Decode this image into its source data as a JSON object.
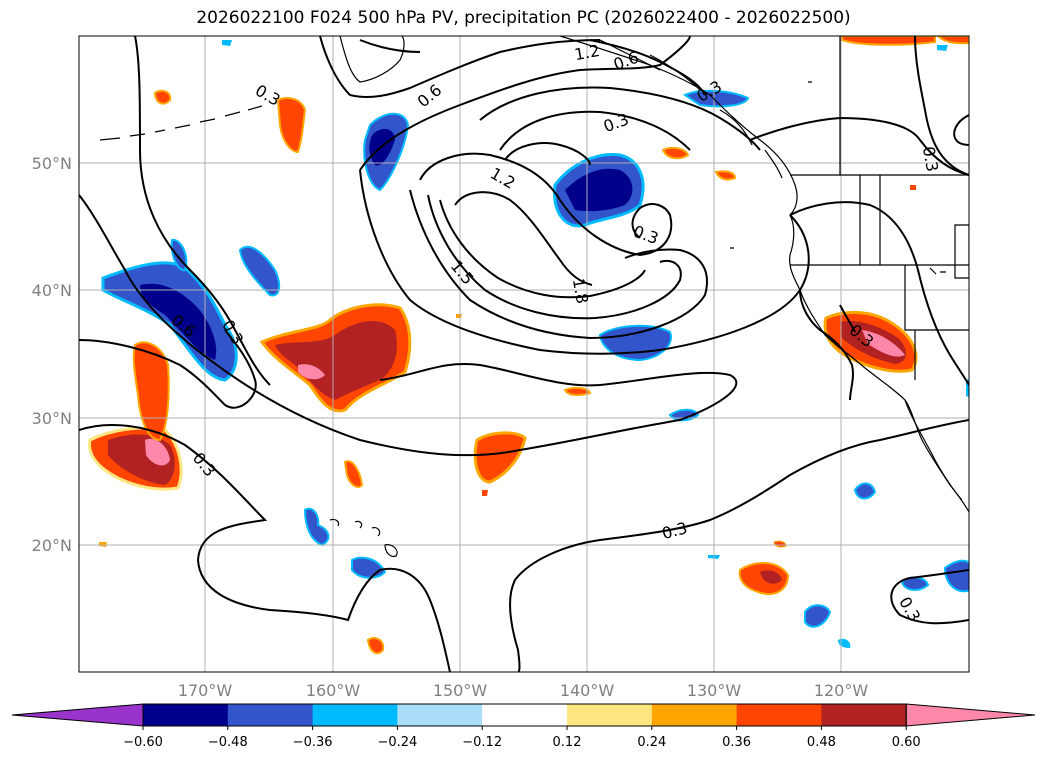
{
  "title": "2026022100 F024 500 hPa PV, precipitation PC (2026022400 - 2026022500)",
  "lat_labels": [
    "50°N",
    "40°N",
    "30°N",
    "20°N"
  ],
  "lon_labels": [
    "170°W",
    "160°W",
    "150°W",
    "140°W",
    "130°W",
    "120°W"
  ],
  "colorbar": {
    "ticks": [
      "−0.60",
      "−0.48",
      "−0.36",
      "−0.24",
      "−0.12",
      "0.12",
      "0.24",
      "0.36",
      "0.48",
      "0.60"
    ],
    "colors": [
      "#9933cc",
      "#00008b",
      "#3355cc",
      "#00bbff",
      "#aaddf8",
      "#ffffff",
      "#ffe680",
      "#ffa500",
      "#ff4500",
      "#b22222",
      "#ff88aa"
    ]
  },
  "contour_labels": [
    "1.2",
    "0.6",
    "0.3",
    "0.6",
    "0.3",
    "1.2",
    "1.5",
    "1.8",
    "0.3",
    "0.3",
    "0.6",
    "0.3",
    "0.3",
    "0.3",
    "0.3",
    "0.3",
    "0.3"
  ],
  "colors": {
    "grid": "#b0b0b0",
    "coast": "#000000",
    "contour": "#000000",
    "axis_label": "#808080"
  }
}
